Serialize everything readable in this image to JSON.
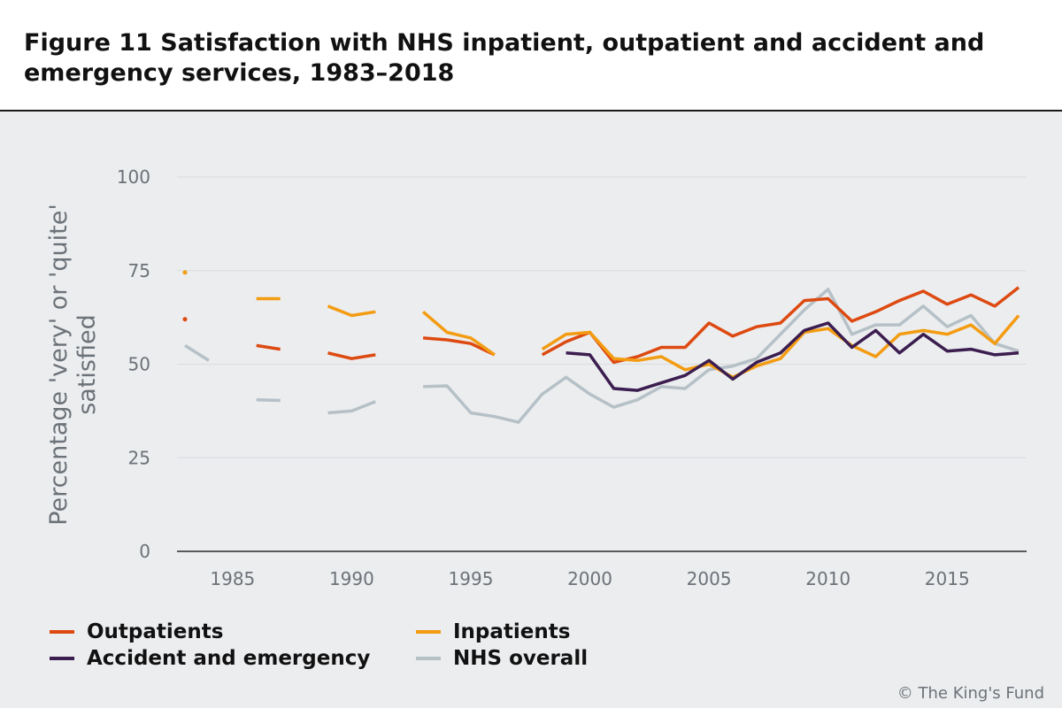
{
  "header": {
    "title": "Figure 11 Satisfaction with NHS inpatient, outpatient and accident and emergency services, 1983–2018"
  },
  "credit": "© The King's Fund",
  "colors": {
    "outpatients": "#dd4a11",
    "inpatients": "#f39c12",
    "accident_and_emergency": "#3b1d4f",
    "nhs_overall": "#b5c1c7",
    "grid": "#d8dbdf",
    "axis": "#2a2a2a",
    "text": "#6b7278"
  },
  "legend": {
    "items": [
      {
        "label": "Outpatients",
        "color": "#dd4a11"
      },
      {
        "label": "Inpatients",
        "color": "#f39c12"
      },
      {
        "label": "Accident and emergency",
        "color": "#3b1d4f"
      },
      {
        "label": "NHS overall",
        "color": "#b5c1c7"
      }
    ]
  },
  "chart_data": {
    "type": "line",
    "title": "Satisfaction with NHS inpatient, outpatient and accident and emergency services, 1983–2018",
    "xlabel": "",
    "ylabel": "Percentage 'very' or 'quite' satisfied",
    "xlim": [
      1983,
      2018
    ],
    "ylim": [
      0,
      100
    ],
    "xticks": [
      1985,
      1990,
      1995,
      2000,
      2005,
      2010,
      2015
    ],
    "yticks": [
      0,
      25,
      50,
      75,
      100
    ],
    "grid": true,
    "legend_position": "bottom",
    "x": [
      1983,
      1984,
      1985,
      1986,
      1987,
      1988,
      1989,
      1990,
      1991,
      1992,
      1993,
      1994,
      1995,
      1996,
      1997,
      1998,
      1999,
      2000,
      2001,
      2002,
      2003,
      2004,
      2005,
      2006,
      2007,
      2008,
      2009,
      2010,
      2011,
      2012,
      2013,
      2014,
      2015,
      2016,
      2017,
      2018
    ],
    "series": [
      {
        "name": "NHS overall",
        "key": "nhs_overall",
        "values": [
          55,
          51,
          null,
          40.5,
          40.3,
          null,
          37,
          37.5,
          40,
          null,
          44,
          44.2,
          37,
          36,
          34.5,
          42,
          46.5,
          42,
          38.5,
          40.5,
          44,
          43.5,
          48.5,
          49.5,
          51.5,
          58,
          64.5,
          70,
          58,
          60.5,
          60.5,
          65.5,
          60,
          63,
          55.5,
          53.5
        ]
      },
      {
        "name": "Outpatients",
        "key": "outpatients",
        "values": [
          62,
          null,
          null,
          55,
          54,
          null,
          53,
          51.5,
          52.5,
          null,
          57,
          56.5,
          55.5,
          52.5,
          null,
          52.5,
          56,
          58.5,
          50.5,
          52,
          54.5,
          54.5,
          61,
          57.5,
          60,
          61,
          67,
          67.5,
          61.5,
          64,
          67,
          69.5,
          66,
          68.5,
          65.5,
          70.5
        ]
      },
      {
        "name": "Inpatients",
        "key": "inpatients",
        "values": [
          74.5,
          null,
          null,
          67.5,
          67.5,
          null,
          65.5,
          63,
          64,
          null,
          64,
          58.5,
          57,
          52.5,
          null,
          54,
          58,
          58.5,
          51.5,
          51,
          52,
          48.5,
          50,
          46.5,
          49.5,
          51.5,
          58.5,
          59.5,
          55,
          52,
          58,
          59,
          58,
          60.5,
          55.5,
          63
        ]
      },
      {
        "name": "Accident and emergency",
        "key": "accident_and_emergency",
        "values": [
          null,
          null,
          null,
          null,
          null,
          null,
          null,
          null,
          null,
          null,
          null,
          null,
          null,
          null,
          null,
          null,
          53,
          52.5,
          43.5,
          43,
          45,
          47,
          51,
          46,
          50.5,
          53,
          59,
          61,
          54.5,
          59,
          53,
          58,
          53.5,
          54,
          52.5,
          53
        ]
      }
    ]
  }
}
